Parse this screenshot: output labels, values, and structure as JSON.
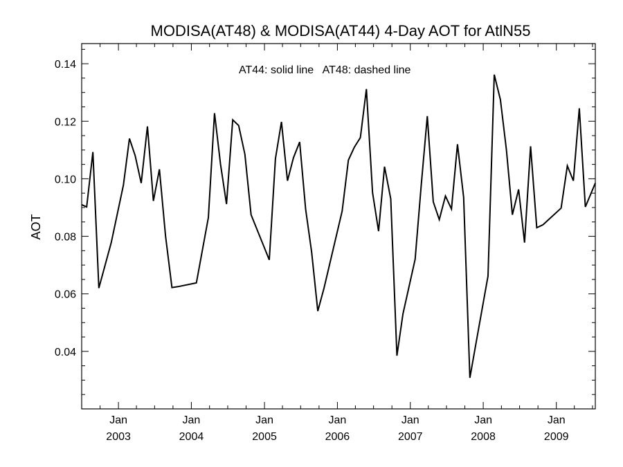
{
  "chart_data": {
    "type": "line",
    "title": "MODISA(AT48) & MODISA(AT44) 4-Day AOT for AtlN55",
    "ylabel": "AOT",
    "xlabel": "",
    "annotation": "AT44: solid line   AT48: dashed line",
    "ylim": [
      0.02,
      0.147
    ],
    "xlim": [
      "2002-07-01",
      "2009-07-15"
    ],
    "yticks": [
      0.04,
      0.06,
      0.08,
      0.1,
      0.12,
      0.14
    ],
    "ytick_labels": [
      "0.04",
      "0.06",
      "0.08",
      "0.10",
      "0.12",
      "0.14"
    ],
    "xticks": [
      {
        "date": "2003-01-01",
        "month": "Jan",
        "year": "2003"
      },
      {
        "date": "2004-01-01",
        "month": "Jan",
        "year": "2004"
      },
      {
        "date": "2005-01-01",
        "month": "Jan",
        "year": "2005"
      },
      {
        "date": "2006-01-01",
        "month": "Jan",
        "year": "2006"
      },
      {
        "date": "2007-01-01",
        "month": "Jan",
        "year": "2007"
      },
      {
        "date": "2008-01-01",
        "month": "Jan",
        "year": "2008"
      },
      {
        "date": "2009-01-01",
        "month": "Jan",
        "year": "2009"
      }
    ],
    "series": [
      {
        "style": "solid",
        "color": "#000000",
        "x": [
          "2002-07-01",
          "2002-07-26",
          "2002-08-26",
          "2002-09-25",
          "2002-11-26",
          "2003-01-26",
          "2003-02-25",
          "2003-03-26",
          "2003-04-25",
          "2003-05-26",
          "2003-06-25",
          "2003-07-25",
          "2003-08-25",
          "2003-09-26",
          "2003-10-26",
          "2004-01-26",
          "2004-03-26",
          "2004-04-26",
          "2004-05-26",
          "2004-06-25",
          "2004-07-26",
          "2004-08-25",
          "2004-09-25",
          "2004-10-26",
          "2005-01-25",
          "2005-02-25",
          "2005-03-27",
          "2005-04-26",
          "2005-05-26",
          "2005-06-26",
          "2005-07-26",
          "2005-08-25",
          "2005-09-25",
          "2005-10-26",
          "2006-01-25",
          "2006-02-25",
          "2006-03-27",
          "2006-04-26",
          "2006-05-26",
          "2006-06-26",
          "2006-07-26",
          "2006-08-25",
          "2006-09-25",
          "2006-10-26",
          "2006-11-25",
          "2007-01-25",
          "2007-02-25",
          "2007-03-27",
          "2007-04-26",
          "2007-05-26",
          "2007-06-26",
          "2007-07-26",
          "2007-08-25",
          "2007-09-25",
          "2007-10-26",
          "2007-11-25",
          "2008-01-25",
          "2008-02-25",
          "2008-03-27",
          "2008-04-26",
          "2008-05-26",
          "2008-06-26",
          "2008-07-26",
          "2008-08-25",
          "2008-09-25",
          "2008-10-26",
          "2009-01-25",
          "2009-02-25",
          "2009-03-27",
          "2009-04-26",
          "2009-05-26",
          "2009-07-15"
        ],
        "values": [
          0.091,
          0.0902,
          0.1093,
          0.062,
          0.0778,
          0.0978,
          0.114,
          0.108,
          0.0985,
          0.1182,
          0.0923,
          0.1033,
          0.08,
          0.0622,
          0.0625,
          0.0638,
          0.0865,
          0.1228,
          0.105,
          0.0912,
          0.1205,
          0.1185,
          0.1085,
          0.0875,
          0.0718,
          0.107,
          0.1198,
          0.0993,
          0.1073,
          0.1128,
          0.0895,
          0.0745,
          0.054,
          0.062,
          0.0888,
          0.1065,
          0.111,
          0.1143,
          0.1312,
          0.0952,
          0.0818,
          0.1042,
          0.093,
          0.0385,
          0.053,
          0.072,
          0.098,
          0.1218,
          0.092,
          0.0858,
          0.094,
          0.0895,
          0.112,
          0.0935,
          0.0308,
          0.0425,
          0.0662,
          0.1362,
          0.1275,
          0.11,
          0.0875,
          0.0963,
          0.0778,
          0.1113,
          0.083,
          0.084,
          0.0898,
          0.1045,
          0.0993,
          0.1245,
          0.0902,
          0.0985
        ]
      }
    ]
  }
}
